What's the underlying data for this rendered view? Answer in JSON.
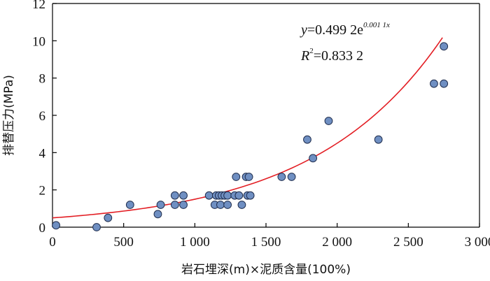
{
  "chart_data": {
    "type": "scatter",
    "xlabel": "岩石埋深(m)×泥质含量(100%)",
    "ylabel": "排替压力(MPa)",
    "xlim": [
      0,
      3000
    ],
    "ylim": [
      0,
      12
    ],
    "x_ticks": [
      0,
      500,
      1000,
      1500,
      2000,
      2500,
      3000
    ],
    "x_tick_labels": [
      "0",
      "500",
      "1 000",
      "1 500",
      "2 000",
      "2 500",
      "3 000"
    ],
    "y_ticks": [
      0,
      2,
      4,
      6,
      8,
      10,
      12
    ],
    "y_tick_labels": [
      "0",
      "2",
      "4",
      "6",
      "8",
      "10",
      "12"
    ],
    "grid": false,
    "legend": "none",
    "colors": {
      "point_fill": "#6f8fc2",
      "point_stroke": "#1f2d4d",
      "trend_line": "#e31e24",
      "axis": "#000000"
    },
    "points": [
      {
        "x": 25,
        "y": 0.1
      },
      {
        "x": 310,
        "y": 0.0
      },
      {
        "x": 390,
        "y": 0.5
      },
      {
        "x": 545,
        "y": 1.2
      },
      {
        "x": 740,
        "y": 0.7
      },
      {
        "x": 760,
        "y": 1.2
      },
      {
        "x": 860,
        "y": 1.7
      },
      {
        "x": 860,
        "y": 1.2
      },
      {
        "x": 920,
        "y": 1.2
      },
      {
        "x": 920,
        "y": 1.7
      },
      {
        "x": 1100,
        "y": 1.7
      },
      {
        "x": 1140,
        "y": 1.2
      },
      {
        "x": 1150,
        "y": 1.7
      },
      {
        "x": 1170,
        "y": 1.7
      },
      {
        "x": 1180,
        "y": 1.2
      },
      {
        "x": 1190,
        "y": 1.7
      },
      {
        "x": 1210,
        "y": 1.7
      },
      {
        "x": 1230,
        "y": 1.2
      },
      {
        "x": 1230,
        "y": 1.7
      },
      {
        "x": 1280,
        "y": 1.7
      },
      {
        "x": 1290,
        "y": 2.7
      },
      {
        "x": 1310,
        "y": 1.7
      },
      {
        "x": 1330,
        "y": 1.2
      },
      {
        "x": 1360,
        "y": 2.7
      },
      {
        "x": 1370,
        "y": 1.7
      },
      {
        "x": 1380,
        "y": 2.7
      },
      {
        "x": 1390,
        "y": 1.7
      },
      {
        "x": 1610,
        "y": 2.7
      },
      {
        "x": 1680,
        "y": 2.7
      },
      {
        "x": 1790,
        "y": 4.7
      },
      {
        "x": 1830,
        "y": 3.7
      },
      {
        "x": 1940,
        "y": 5.7
      },
      {
        "x": 2290,
        "y": 4.7
      },
      {
        "x": 2680,
        "y": 7.7
      },
      {
        "x": 2750,
        "y": 7.7
      },
      {
        "x": 2750,
        "y": 9.7
      }
    ],
    "trendline": {
      "type": "exponential",
      "a": 0.4992,
      "b": 0.0011,
      "x_range": [
        0,
        2740
      ]
    },
    "annotations": {
      "eq_y": "y",
      "eq_body": "=0.499 2e",
      "eq_exp": "0.001 1x",
      "r2_r": "R",
      "r2_sup": "2",
      "r2_body": "=0.833 2"
    }
  }
}
